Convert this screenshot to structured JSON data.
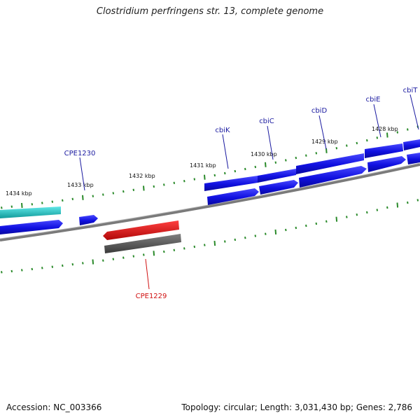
{
  "title": "Clostridium perfringens str. 13, complete genome",
  "footer": {
    "accession": "Accession: NC_003366",
    "topology": "Topology: circular; Length: 3,031,430 bp; Genes: 2,786"
  },
  "colors": {
    "blue": "#1010e0",
    "cyan": "#20c8c8",
    "red": "#e01010",
    "gray": "#5a5a5a",
    "tick": "#2a8a2a",
    "label_blue": "#1a1aa0",
    "label_red": "#d01010"
  },
  "kbp_labels": [
    "1434 kbp",
    "1433 kbp",
    "1432 kbp",
    "1431 kbp",
    "1430 kbp",
    "1429 kbp",
    "1428 kbp"
  ],
  "gene_labels": [
    {
      "name": "CPE1230",
      "color": "label_blue"
    },
    {
      "name": "cbiK",
      "color": "label_blue"
    },
    {
      "name": "cbiC",
      "color": "label_blue"
    },
    {
      "name": "cbiD",
      "color": "label_blue"
    },
    {
      "name": "cbiE",
      "color": "label_blue"
    },
    {
      "name": "cbiT",
      "color": "label_blue"
    },
    {
      "name": "CPE1229",
      "color": "label_red"
    }
  ]
}
